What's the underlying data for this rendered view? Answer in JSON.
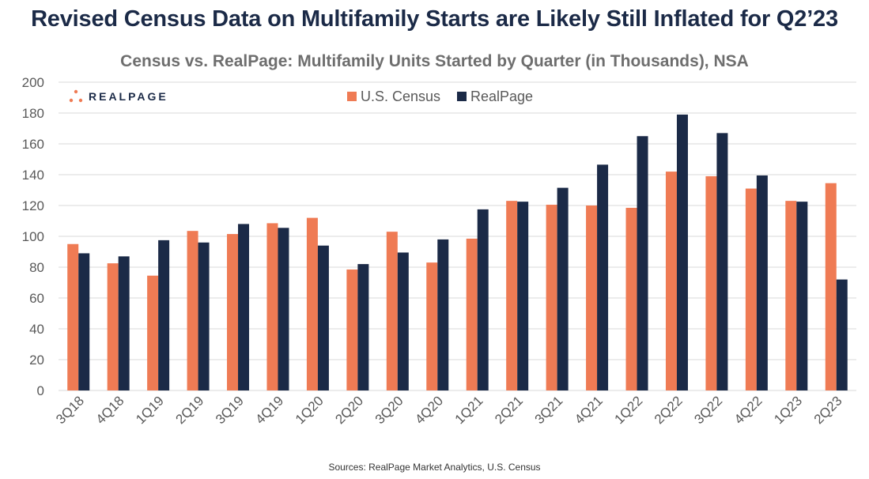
{
  "header": {
    "title": "Revised Census Data on Multifamily Starts are Likely Still Inflated for Q2’23",
    "subtitle": "Census vs. RealPage: Multifamily Units Started by Quarter (in Thousands), NSA",
    "source": "Sources: RealPage Market Analytics, U.S. Census",
    "logo_text": "REALPAGE"
  },
  "colors": {
    "census": "#ef7b54",
    "realpage": "#1b2a47",
    "grid": "#d9d9d9",
    "axis_text": "#595959",
    "logo_dots": "#ef7b54"
  },
  "chart_data": {
    "type": "bar",
    "title": "Census vs. RealPage: Multifamily Units Started by Quarter (in Thousands), NSA",
    "xlabel": "",
    "ylabel": "",
    "ylim": [
      0,
      200
    ],
    "yticks": [
      0,
      20,
      40,
      60,
      80,
      100,
      120,
      140,
      160,
      180,
      200
    ],
    "grid": true,
    "legend_position": "top-center",
    "categories": [
      "3Q18",
      "4Q18",
      "1Q19",
      "2Q19",
      "3Q19",
      "4Q19",
      "1Q20",
      "2Q20",
      "3Q20",
      "4Q20",
      "1Q21",
      "2Q21",
      "3Q21",
      "4Q21",
      "1Q22",
      "2Q22",
      "3Q22",
      "4Q22",
      "1Q23",
      "2Q23"
    ],
    "series": [
      {
        "name": "U.S. Census",
        "values": [
          95,
          82.5,
          74.5,
          103.5,
          101.5,
          108.5,
          112,
          78.5,
          103,
          83,
          98.5,
          123,
          120.5,
          120,
          118.5,
          142,
          139,
          131,
          123,
          134.5
        ]
      },
      {
        "name": "RealPage",
        "values": [
          89,
          87,
          97.5,
          96,
          108,
          105.5,
          94,
          82,
          89.5,
          98,
          117.5,
          122.5,
          131.5,
          146.5,
          165,
          179,
          167,
          139.5,
          122.5,
          72
        ]
      }
    ]
  }
}
